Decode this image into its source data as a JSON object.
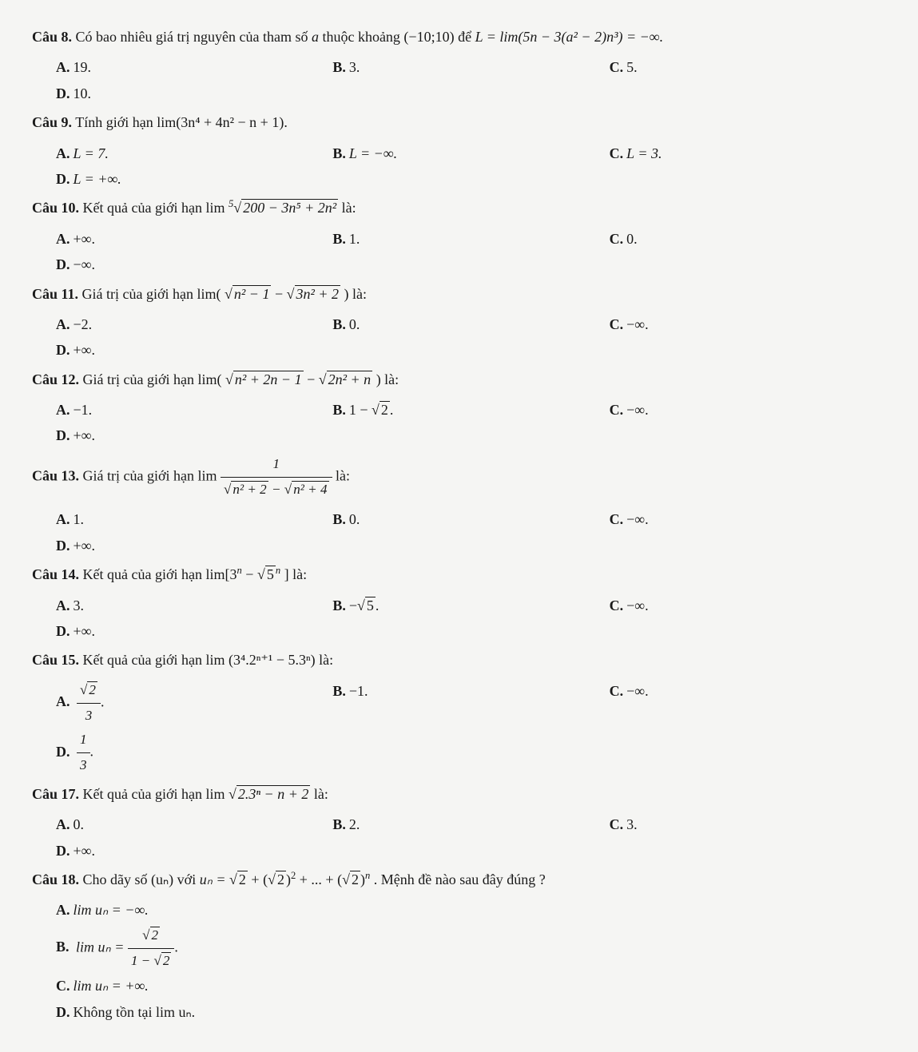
{
  "q8": {
    "label": "Câu 8.",
    "text_before": " Có bao nhiêu giá trị nguyên của tham số ",
    "param": "a",
    "text_mid": "  thuộc khoảng (−10;10) để ",
    "expr": "L = lim(5n − 3(a² − 2)n³) = −∞.",
    "A": "19.",
    "B": "3.",
    "C": "5.",
    "D": "10."
  },
  "q9": {
    "label": "Câu 9.",
    "text": " Tính giới hạn  lim(3n⁴ + 4n² − n + 1).",
    "A": "L = 7.",
    "B": "L = −∞.",
    "C": "L = 3.",
    "D": "L = +∞."
  },
  "q10": {
    "label": "Câu 10.",
    "text_before": " Kết quả của giới hạn  lim ",
    "root_index": "5",
    "radicand": "200 − 3n⁵ + 2n²",
    "text_after": "  là:",
    "A": "+∞.",
    "B": "1.",
    "C": "0.",
    "D": "−∞."
  },
  "q11": {
    "label": "Câu 11.",
    "text_before": " Giá trị của giới hạn  lim(",
    "rad1": "n² − 1",
    "minus": " − ",
    "rad2": "3n² + 2",
    "text_after": ")  là:",
    "A": "−2.",
    "B": "0.",
    "C": "−∞.",
    "D": "+∞."
  },
  "q12": {
    "label": "Câu 12.",
    "text_before": " Giá trị của giới hạn  lim(",
    "rad1": "n² + 2n − 1",
    "minus": " − ",
    "rad2": "2n² + n",
    "text_after": ")  là:",
    "A": "−1.",
    "B_before": "1 − ",
    "B_rad": "2",
    "B_after": ".",
    "C": "−∞.",
    "D": "+∞."
  },
  "q13": {
    "label": "Câu 13.",
    "text_before": " Giá trị của giới hạn  lim ",
    "num": "1",
    "den_rad1": "n² + 2",
    "den_minus": " − ",
    "den_rad2": "n² + 4",
    "text_after": "  là:",
    "A": "1.",
    "B": "0.",
    "C": "−∞.",
    "D": "+∞."
  },
  "q14": {
    "label": "Câu 14.",
    "text_before": " Kết quả của giới hạn  lim[3",
    "sup1": "n",
    "mid": " − ",
    "rad": "5",
    "sup2": "n",
    "text_after": "]  là:",
    "A": "3.",
    "B_prefix": "−",
    "B_rad": "5",
    "B_suffix": ".",
    "C": "−∞.",
    "D": "+∞."
  },
  "q15": {
    "label": "Câu 15.",
    "text": " Kết quả của giới hạn  lim (3⁴.2ⁿ⁺¹ − 5.3ⁿ)  là:",
    "A_num_rad": "2",
    "A_den": "3",
    "A_suffix": ".",
    "B": "−1.",
    "C": "−∞.",
    "D_num": "1",
    "D_den": "3",
    "D_suffix": "."
  },
  "q17": {
    "label": "Câu 17.",
    "text_before": " Kết quả của giới hạn  lim ",
    "radicand": "2.3ⁿ − n + 2",
    "text_after": "  là:",
    "A": "0.",
    "B": "2.",
    "C": "3.",
    "D": "+∞."
  },
  "q18": {
    "label": "Câu 18.",
    "text_before": " Cho dãy số (uₙ) với ",
    "expr_lhs": "uₙ = ",
    "rad_a": "2",
    "plus1": " + (",
    "rad_b": "2",
    "sup_b": "2",
    "plus2": " + ... + (",
    "rad_c": "2",
    "sup_c": "n",
    "text_after": ".  Mệnh đề nào sau đây đúng ?",
    "A": "lim uₙ = −∞.",
    "B_prefix": "lim uₙ = ",
    "B_num_rad": "2",
    "B_den_prefix": "1 − ",
    "B_den_rad": "2",
    "B_suffix": ".",
    "C": "lim uₙ = +∞.",
    "D": "Không tồn tại  lim uₙ."
  },
  "optlabels": {
    "A": "A.",
    "B": "B.",
    "C": "C.",
    "D": "D."
  },
  "radical_sym": "√",
  "rparen": ")"
}
